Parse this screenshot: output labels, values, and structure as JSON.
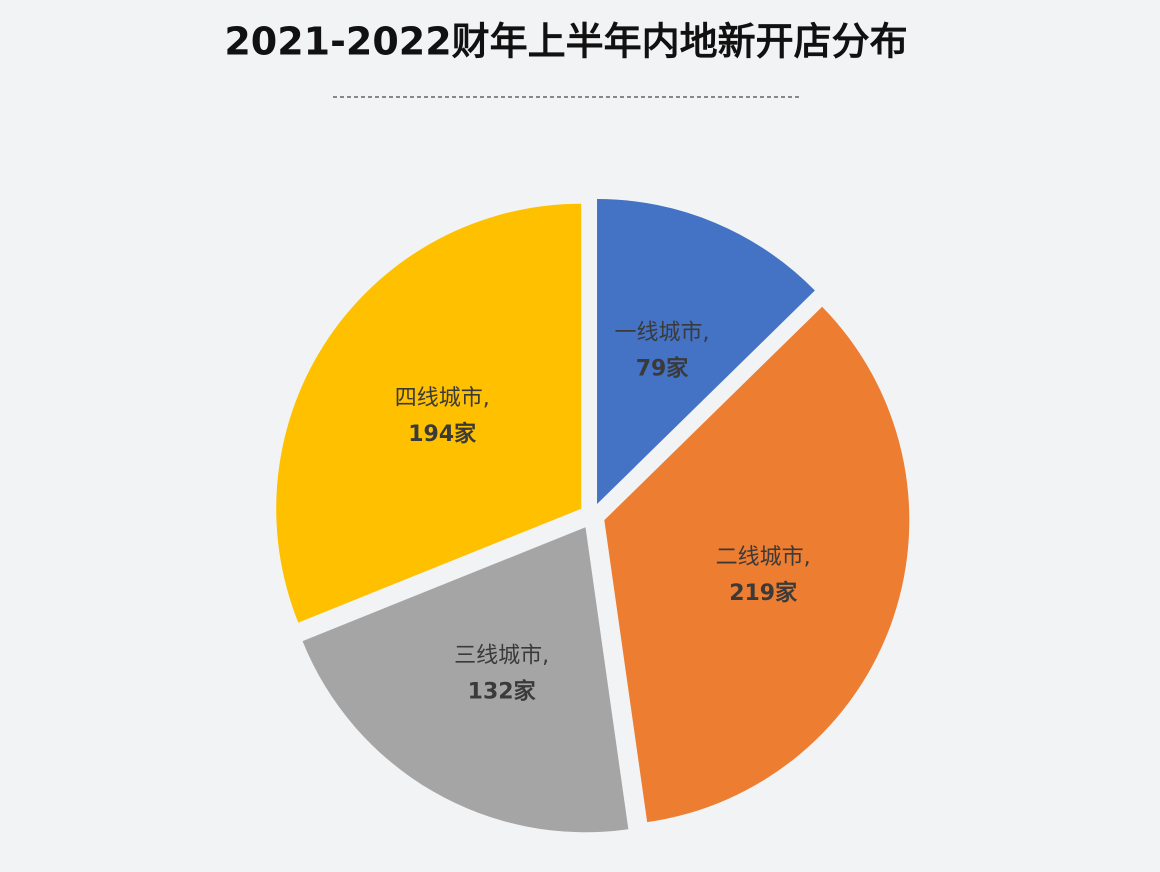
{
  "chart_data": {
    "type": "pie",
    "title": "2021-2022财年上半年内地新开店分布",
    "categories": [
      "一线城市,",
      "二线城市,",
      "三线城市,",
      "四线城市,"
    ],
    "values": [
      79,
      219,
      132,
      194
    ],
    "value_labels": [
      "79家",
      "219家",
      "132家",
      "194家"
    ],
    "colors": [
      "#4472c4",
      "#ed7d31",
      "#a5a5a5",
      "#ffc000"
    ]
  }
}
